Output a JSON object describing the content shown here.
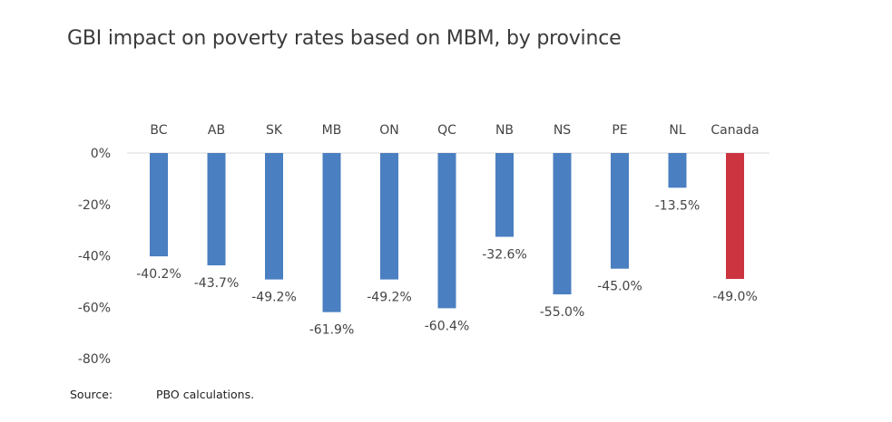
{
  "chart_data": {
    "type": "bar",
    "title": "GBI impact on poverty rates based on MBM, by province",
    "categories": [
      "BC",
      "AB",
      "SK",
      "MB",
      "ON",
      "QC",
      "NB",
      "NS",
      "PE",
      "NL",
      "Canada"
    ],
    "values": [
      -40.2,
      -43.7,
      -49.2,
      -61.9,
      -49.2,
      -60.4,
      -32.6,
      -55.0,
      -45.0,
      -13.5,
      -49.0
    ],
    "data_labels": [
      "-40.2%",
      "-43.7%",
      "-49.2%",
      "-61.9%",
      "-49.2%",
      "-60.4%",
      "-32.6%",
      "-55.0%",
      "-45.0%",
      "-13.5%",
      "-49.0%"
    ],
    "colors": [
      "#4a7fc1",
      "#4a7fc1",
      "#4a7fc1",
      "#4a7fc1",
      "#4a7fc1",
      "#4a7fc1",
      "#4a7fc1",
      "#4a7fc1",
      "#4a7fc1",
      "#4a7fc1",
      "#cc3440"
    ],
    "yticks": [
      0,
      -20,
      -40,
      -60,
      -80
    ],
    "ytick_labels": [
      "0%",
      "-20%",
      "-40%",
      "-60%",
      "-80%"
    ],
    "ylim": [
      -80,
      0
    ],
    "category_axis_position": "top",
    "xlabel": "",
    "ylabel": "",
    "grid": false
  },
  "source": {
    "label": "Source:",
    "text": "PBO calculations."
  }
}
